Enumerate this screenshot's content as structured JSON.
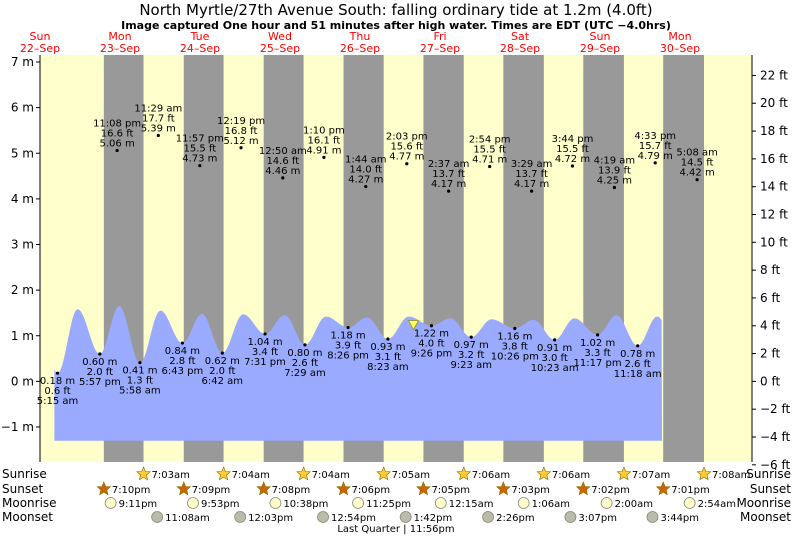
{
  "header": {
    "title": "North Myrtle/27th Avenue South: falling  ordinary tide at 1.2m (4.0ft)",
    "subtitle": "Image captured One hour and 51 minutes after high water. Times are EDT (UTC −4.0hrs)"
  },
  "colors": {
    "night": "#999999",
    "day": "#ffffcc",
    "tide": "#99aaff",
    "day_label": "#ff0000",
    "sun_icon": "#ffcc33",
    "sunset_icon": "#cc6600",
    "moonrise_icon": "#ffffcc",
    "moonset_icon": "#bbbbaa"
  },
  "days": [
    {
      "name": "Sun",
      "date": "22–Sep"
    },
    {
      "name": "Mon",
      "date": "23–Sep"
    },
    {
      "name": "Tue",
      "date": "24–Sep"
    },
    {
      "name": "Wed",
      "date": "25–Sep"
    },
    {
      "name": "Thu",
      "date": "26–Sep"
    },
    {
      "name": "Fri",
      "date": "27–Sep"
    },
    {
      "name": "Sat",
      "date": "28–Sep"
    },
    {
      "name": "Sun",
      "date": "29–Sep"
    },
    {
      "name": "Mon",
      "date": "30–Sep"
    }
  ],
  "chart_data": {
    "type": "area",
    "title": "North Myrtle/27th Avenue South: falling  ordinary tide at 1.2m (4.0ft)",
    "y_left_unit": "m",
    "y_right_unit": "ft",
    "ylim_m": [
      -1.5,
      7.2
    ],
    "y_left_ticks": [
      "−1 m",
      "0 m",
      "1 m",
      "2 m",
      "3 m",
      "4 m",
      "5 m",
      "6 m",
      "7 m"
    ],
    "y_left_values": [
      -1,
      0,
      1,
      2,
      3,
      4,
      5,
      6,
      7
    ],
    "y_right_ticks": [
      "−6 ft",
      "−4 ft",
      "−2 ft",
      "0 ft",
      "2 ft",
      "4 ft",
      "6 ft",
      "8 ft",
      "10 ft",
      "12 ft",
      "14 ft",
      "16 ft",
      "18 ft",
      "20 ft",
      "22 ft"
    ],
    "y_right_values": [
      -6,
      -4,
      -2,
      0,
      2,
      4,
      6,
      8,
      10,
      12,
      14,
      16,
      18,
      20,
      22
    ],
    "current_tide_m": 1.2,
    "current_tide_ft": 4.0,
    "labels_upper": [
      {
        "time": "11:08 pm",
        "ft": "16.6 ft",
        "m": "5.06 m",
        "day": 0.964,
        "value": 5.06
      },
      {
        "time": "11:29 am",
        "ft": "17.7 ft",
        "m": "5.39 m",
        "day": 1.479,
        "value": 5.39
      },
      {
        "time": "11:57 pm",
        "ft": "15.5 ft",
        "m": "4.73 m",
        "day": 1.998,
        "value": 4.73
      },
      {
        "time": "12:19 pm",
        "ft": "16.8 ft",
        "m": "5.12 m",
        "day": 2.513,
        "value": 5.12
      },
      {
        "time": "12:50 am",
        "ft": "14.6 ft",
        "m": "4.46 m",
        "day": 3.035,
        "value": 4.46
      },
      {
        "time": "1:10 pm",
        "ft": "16.1 ft",
        "m": "4.91 m",
        "day": 3.549,
        "value": 4.91
      },
      {
        "time": "1:44 am",
        "ft": "14.0 ft",
        "m": "4.27 m",
        "day": 4.072,
        "value": 4.27
      },
      {
        "time": "2:03 pm",
        "ft": "15.6 ft",
        "m": "4.77 m",
        "day": 4.585,
        "value": 4.77
      },
      {
        "time": "2:37 am",
        "ft": "13.7 ft",
        "m": "4.17 m",
        "day": 5.108,
        "value": 4.17
      },
      {
        "time": "2:54 pm",
        "ft": "15.5 ft",
        "m": "4.71 m",
        "day": 5.621,
        "value": 4.71
      },
      {
        "time": "3:29 am",
        "ft": "13.7 ft",
        "m": "4.17 m",
        "day": 6.145,
        "value": 4.17
      },
      {
        "time": "3:44 pm",
        "ft": "15.5 ft",
        "m": "4.72 m",
        "day": 6.656,
        "value": 4.72
      },
      {
        "time": "4:19 am",
        "ft": "13.9 ft",
        "m": "4.25 m",
        "day": 7.18,
        "value": 4.25
      },
      {
        "time": "4:33 pm",
        "ft": "15.7 ft",
        "m": "4.79 m",
        "day": 7.69,
        "value": 4.79
      },
      {
        "time": "5:08 am",
        "ft": "14.5 ft",
        "m": "4.42 m",
        "day": 8.214,
        "value": 4.42
      }
    ],
    "labels_lower": [
      {
        "time": "5:15 am",
        "ft": "0.6 ft",
        "m": "0.18 m",
        "day": 0.219,
        "value": 0.18
      },
      {
        "time": "5:57 pm",
        "ft": "2.0 ft",
        "m": "0.60 m",
        "day": 0.748,
        "value": 0.6
      },
      {
        "time": "5:58 am",
        "ft": "1.3 ft",
        "m": "0.41 m",
        "day": 1.249,
        "value": 0.41
      },
      {
        "time": "6:43 pm",
        "ft": "2.8 ft",
        "m": "0.84 m",
        "day": 1.78,
        "value": 0.84
      },
      {
        "time": "6:42 am",
        "ft": "2.0 ft",
        "m": "0.62 m",
        "day": 2.279,
        "value": 0.62
      },
      {
        "time": "7:31 pm",
        "ft": "3.4 ft",
        "m": "1.04 m",
        "day": 2.813,
        "value": 1.04
      },
      {
        "time": "7:29 am",
        "ft": "2.6 ft",
        "m": "0.80 m",
        "day": 3.312,
        "value": 0.8
      },
      {
        "time": "8:26 pm",
        "ft": "3.9 ft",
        "m": "1.18 m",
        "day": 3.851,
        "value": 1.18
      },
      {
        "time": "8:23 am",
        "ft": "3.1 ft",
        "m": "0.93 m",
        "day": 4.349,
        "value": 0.93
      },
      {
        "time": "9:26 pm",
        "ft": "4.0 ft",
        "m": "1.22 m",
        "day": 4.893,
        "value": 1.22
      },
      {
        "time": "9:23 am",
        "ft": "3.2 ft",
        "m": "0.97 m",
        "day": 5.39,
        "value": 0.97
      },
      {
        "time": "10:26 pm",
        "ft": "3.8 ft",
        "m": "1.16 m",
        "day": 5.935,
        "value": 1.16
      },
      {
        "time": "10:23 am",
        "ft": "3.0 ft",
        "m": "0.91 m",
        "day": 6.433,
        "value": 0.91
      },
      {
        "time": "11:17 pm",
        "ft": "3.3 ft",
        "m": "1.02 m",
        "day": 6.97,
        "value": 1.02
      },
      {
        "time": "11:18 am",
        "ft": "2.6 ft",
        "m": "0.78 m",
        "day": 7.471,
        "value": 0.78
      }
    ],
    "tide_extremes": [
      {
        "day": 0.219,
        "value": 0.18
      },
      {
        "day": 0.47,
        "value": 1.58
      },
      {
        "day": 0.748,
        "value": 0.6
      },
      {
        "day": 0.99,
        "value": 1.65
      },
      {
        "day": 1.249,
        "value": 0.41
      },
      {
        "day": 1.505,
        "value": 1.55
      },
      {
        "day": 1.78,
        "value": 0.84
      },
      {
        "day": 2.025,
        "value": 1.48
      },
      {
        "day": 2.279,
        "value": 0.62
      },
      {
        "day": 2.54,
        "value": 1.47
      },
      {
        "day": 2.813,
        "value": 1.04
      },
      {
        "day": 3.06,
        "value": 1.45
      },
      {
        "day": 3.312,
        "value": 0.8
      },
      {
        "day": 3.575,
        "value": 1.42
      },
      {
        "day": 3.851,
        "value": 1.18
      },
      {
        "day": 4.09,
        "value": 1.4
      },
      {
        "day": 4.349,
        "value": 0.93
      },
      {
        "day": 4.61,
        "value": 1.42
      },
      {
        "day": 4.893,
        "value": 1.22
      },
      {
        "day": 5.13,
        "value": 1.38
      },
      {
        "day": 5.39,
        "value": 0.97
      },
      {
        "day": 5.645,
        "value": 1.36
      },
      {
        "day": 5.935,
        "value": 1.16
      },
      {
        "day": 6.17,
        "value": 1.35
      },
      {
        "day": 6.433,
        "value": 0.91
      },
      {
        "day": 6.68,
        "value": 1.38
      },
      {
        "day": 6.97,
        "value": 1.02
      },
      {
        "day": 7.205,
        "value": 1.45
      },
      {
        "day": 7.471,
        "value": 0.78
      },
      {
        "day": 7.715,
        "value": 1.42
      }
    ],
    "current_marker": {
      "day": 4.669,
      "value": 1.2
    },
    "tide_start_day": 0.18,
    "tide_end_day": 7.775,
    "nights": [
      {
        "start": 0.798,
        "end": 1.294
      },
      {
        "start": 1.797,
        "end": 2.295
      },
      {
        "start": 2.796,
        "end": 3.295
      },
      {
        "start": 3.794,
        "end": 4.296
      },
      {
        "start": 4.793,
        "end": 5.297
      },
      {
        "start": 5.792,
        "end": 6.298
      },
      {
        "start": 6.791,
        "end": 7.299
      },
      {
        "start": 7.79,
        "end": 8.3
      }
    ]
  },
  "almanac": {
    "row_labels": {
      "sunrise": "Sunrise",
      "sunset": "Sunset",
      "moonrise": "Moonrise",
      "moonset": "Moonset"
    },
    "sunrise": [
      {
        "time": "7:03am",
        "day": 1.294
      },
      {
        "time": "7:04am",
        "day": 2.295
      },
      {
        "time": "7:04am",
        "day": 3.295
      },
      {
        "time": "7:05am",
        "day": 4.296
      },
      {
        "time": "7:06am",
        "day": 5.297
      },
      {
        "time": "7:06am",
        "day": 6.298
      },
      {
        "time": "7:07am",
        "day": 7.299
      },
      {
        "time": "7:08am",
        "day": 8.3
      }
    ],
    "sunset": [
      {
        "time": "7:10pm",
        "day": 0.798
      },
      {
        "time": "7:09pm",
        "day": 1.797
      },
      {
        "time": "7:08pm",
        "day": 2.796
      },
      {
        "time": "7:06pm",
        "day": 3.794
      },
      {
        "time": "7:05pm",
        "day": 4.793
      },
      {
        "time": "7:03pm",
        "day": 5.792
      },
      {
        "time": "7:02pm",
        "day": 6.791
      },
      {
        "time": "7:01pm",
        "day": 7.79
      }
    ],
    "moonrise": [
      {
        "time": "9:11pm",
        "day": 0.883
      },
      {
        "time": "9:53pm",
        "day": 1.912
      },
      {
        "time": "10:38pm",
        "day": 2.943
      },
      {
        "time": "11:25pm",
        "day": 3.976
      },
      {
        "time": "12:15am",
        "day": 5.01
      },
      {
        "time": "1:06am",
        "day": 6.046
      },
      {
        "time": "2:00am",
        "day": 7.083
      },
      {
        "time": "2:54am",
        "day": 8.121
      }
    ],
    "moonset": [
      {
        "time": "11:08am",
        "day": 1.464
      },
      {
        "time": "12:03pm",
        "day": 2.502
      },
      {
        "time": "12:54pm",
        "day": 3.538
      },
      {
        "time": "1:42pm",
        "day": 4.571
      },
      {
        "time": "2:26pm",
        "day": 5.601
      },
      {
        "time": "3:07pm",
        "day": 6.63
      },
      {
        "time": "3:44pm",
        "day": 7.656
      }
    ],
    "moon_phase": "Last Quarter | 11:56pm"
  }
}
